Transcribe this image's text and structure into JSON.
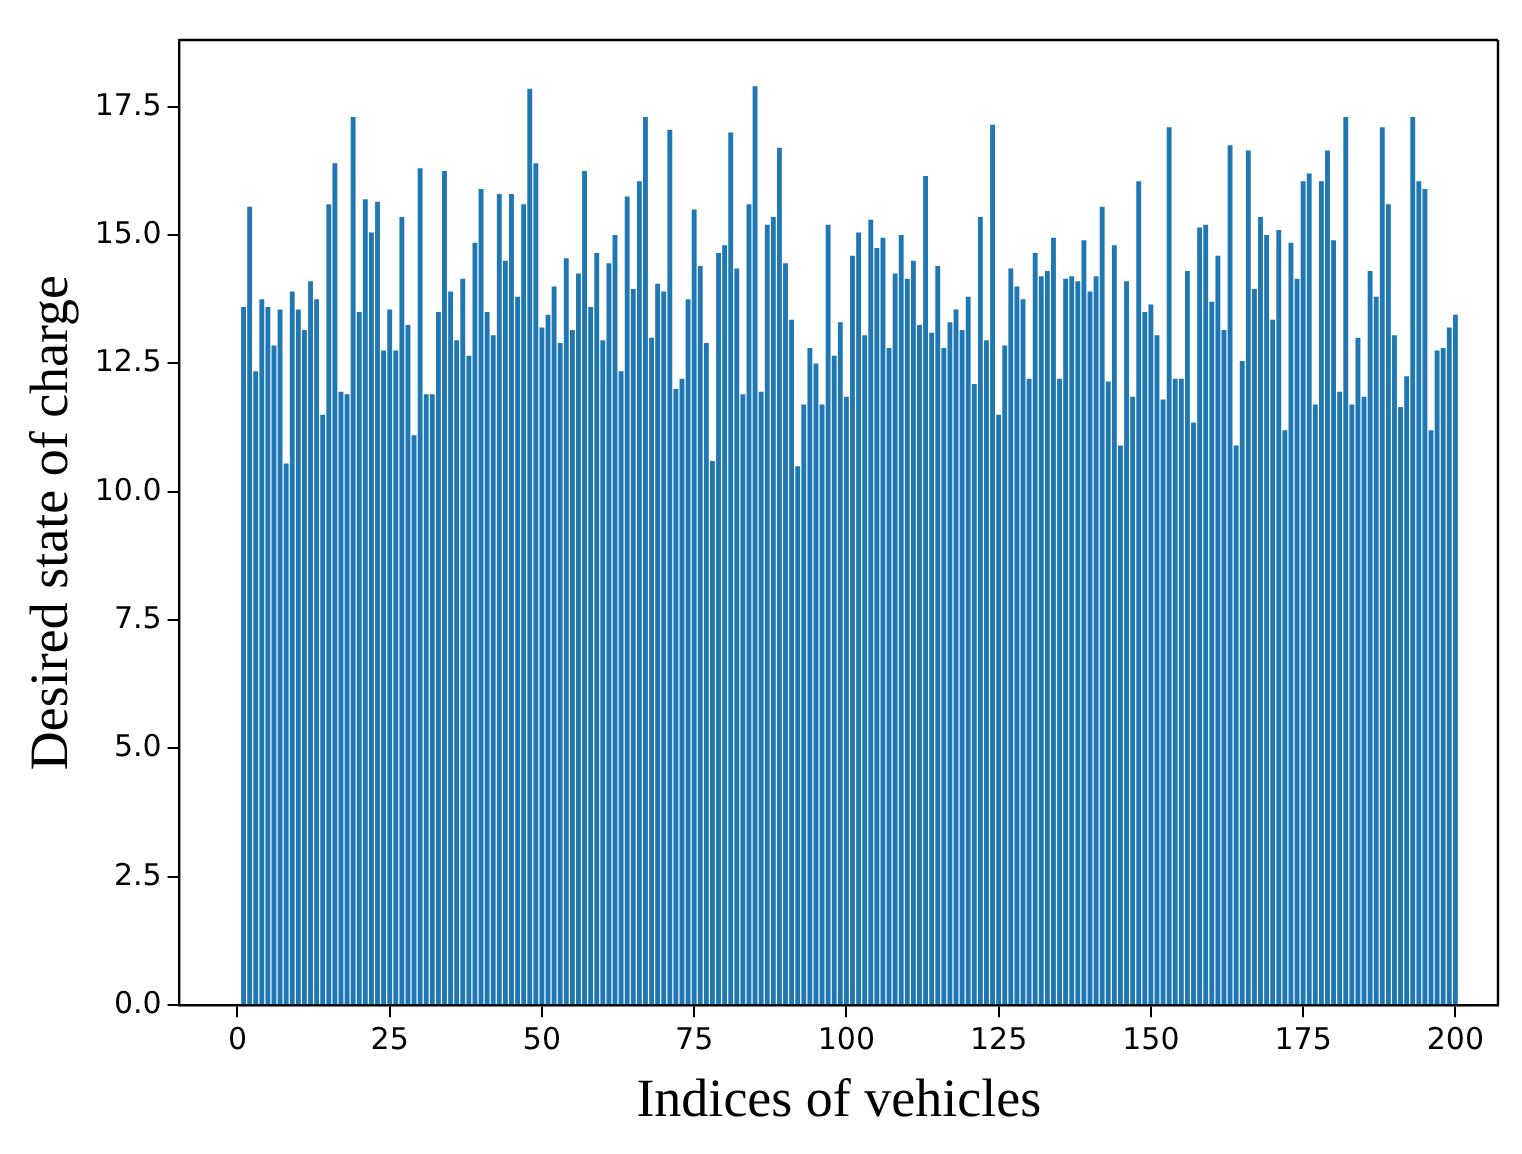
{
  "chart_data": {
    "type": "bar",
    "xlabel": "Indices of vehicles",
    "ylabel": "Desired state of charge",
    "x": [
      1,
      2,
      3,
      4,
      5,
      6,
      7,
      8,
      9,
      10,
      11,
      12,
      13,
      14,
      15,
      16,
      17,
      18,
      19,
      20,
      21,
      22,
      23,
      24,
      25,
      26,
      27,
      28,
      29,
      30,
      31,
      32,
      33,
      34,
      35,
      36,
      37,
      38,
      39,
      40,
      41,
      42,
      43,
      44,
      45,
      46,
      47,
      48,
      49,
      50,
      51,
      52,
      53,
      54,
      55,
      56,
      57,
      58,
      59,
      60,
      61,
      62,
      63,
      64,
      65,
      66,
      67,
      68,
      69,
      70,
      71,
      72,
      73,
      74,
      75,
      76,
      77,
      78,
      79,
      80,
      81,
      82,
      83,
      84,
      85,
      86,
      87,
      88,
      89,
      90,
      91,
      92,
      93,
      94,
      95,
      96,
      97,
      98,
      99,
      100,
      101,
      102,
      103,
      104,
      105,
      106,
      107,
      108,
      109,
      110,
      111,
      112,
      113,
      114,
      115,
      116,
      117,
      118,
      119,
      120,
      121,
      122,
      123,
      124,
      125,
      126,
      127,
      128,
      129,
      130,
      131,
      132,
      133,
      134,
      135,
      136,
      137,
      138,
      139,
      140,
      141,
      142,
      143,
      144,
      145,
      146,
      147,
      148,
      149,
      150,
      151,
      152,
      153,
      154,
      155,
      156,
      157,
      158,
      159,
      160,
      161,
      162,
      163,
      164,
      165,
      166,
      167,
      168,
      169,
      170,
      171,
      172,
      173,
      174,
      175,
      176,
      177,
      178,
      179,
      180,
      181,
      182,
      183,
      184,
      185,
      186,
      187,
      188,
      189,
      190,
      191,
      192,
      193,
      194,
      195,
      196,
      197,
      198,
      199,
      200
    ],
    "values": [
      13.6,
      15.55,
      12.35,
      13.75,
      13.6,
      12.85,
      13.55,
      10.55,
      13.9,
      13.55,
      13.15,
      14.1,
      13.75,
      11.5,
      15.6,
      16.4,
      11.95,
      11.9,
      17.3,
      13.5,
      15.7,
      15.05,
      15.65,
      12.75,
      13.55,
      12.75,
      15.35,
      13.25,
      11.1,
      16.3,
      11.9,
      11.9,
      13.5,
      16.25,
      13.9,
      12.95,
      14.15,
      12.65,
      14.85,
      15.9,
      13.5,
      13.05,
      15.8,
      14.5,
      15.8,
      13.8,
      15.6,
      17.85,
      16.4,
      13.2,
      13.45,
      14.0,
      12.9,
      14.55,
      13.15,
      14.25,
      16.25,
      13.6,
      14.65,
      12.95,
      14.45,
      15.0,
      12.35,
      15.75,
      13.95,
      16.05,
      17.3,
      13.0,
      14.05,
      13.9,
      17.05,
      12.0,
      12.2,
      13.75,
      15.5,
      14.4,
      12.9,
      10.6,
      14.65,
      14.8,
      17.0,
      14.35,
      11.9,
      15.6,
      17.9,
      11.95,
      15.2,
      15.35,
      16.7,
      14.45,
      13.35,
      10.5,
      11.7,
      12.8,
      12.5,
      11.7,
      15.2,
      12.65,
      13.3,
      11.85,
      14.6,
      15.05,
      13.05,
      15.3,
      14.75,
      14.95,
      12.8,
      14.25,
      15.0,
      14.15,
      14.5,
      13.25,
      16.15,
      13.1,
      14.4,
      12.8,
      13.3,
      13.55,
      13.15,
      13.8,
      12.1,
      15.35,
      12.95,
      17.15,
      11.5,
      12.85,
      14.35,
      14.0,
      13.75,
      12.2,
      14.65,
      14.2,
      14.3,
      14.95,
      12.2,
      14.15,
      14.2,
      14.1,
      14.9,
      13.9,
      14.2,
      15.55,
      12.15,
      14.8,
      10.9,
      14.1,
      11.85,
      16.05,
      13.5,
      13.65,
      13.05,
      11.8,
      17.1,
      12.2,
      12.2,
      14.3,
      11.35,
      15.15,
      15.2,
      13.7,
      14.6,
      13.15,
      16.75,
      10.9,
      12.55,
      16.65,
      13.95,
      15.35,
      15.0,
      13.35,
      15.1,
      11.2,
      14.85,
      14.15,
      16.05,
      16.2,
      11.7,
      16.05,
      16.65,
      14.9,
      11.95,
      17.3,
      11.7,
      13.0,
      11.85,
      14.3,
      13.8,
      17.1,
      15.6,
      13.05,
      11.65,
      12.25,
      17.3,
      16.05,
      15.9,
      11.2,
      12.75,
      12.8,
      13.2,
      13.45
    ],
    "color": "#1f77b4",
    "xlim": [
      -9.5,
      207
    ],
    "xticks": [
      0,
      25,
      50,
      75,
      100,
      125,
      150,
      175,
      200
    ],
    "ylim": [
      0,
      18.8
    ],
    "yticks": [
      {
        "value": 0,
        "label": "0.0"
      },
      {
        "value": 2.5,
        "label": "2.5"
      },
      {
        "value": 5,
        "label": "5.0"
      },
      {
        "value": 7.5,
        "label": "7.5"
      },
      {
        "value": 10,
        "label": "10.0"
      },
      {
        "value": 12.5,
        "label": "12.5"
      },
      {
        "value": 15,
        "label": "15.0"
      },
      {
        "value": 17.5,
        "label": "17.5"
      }
    ]
  }
}
